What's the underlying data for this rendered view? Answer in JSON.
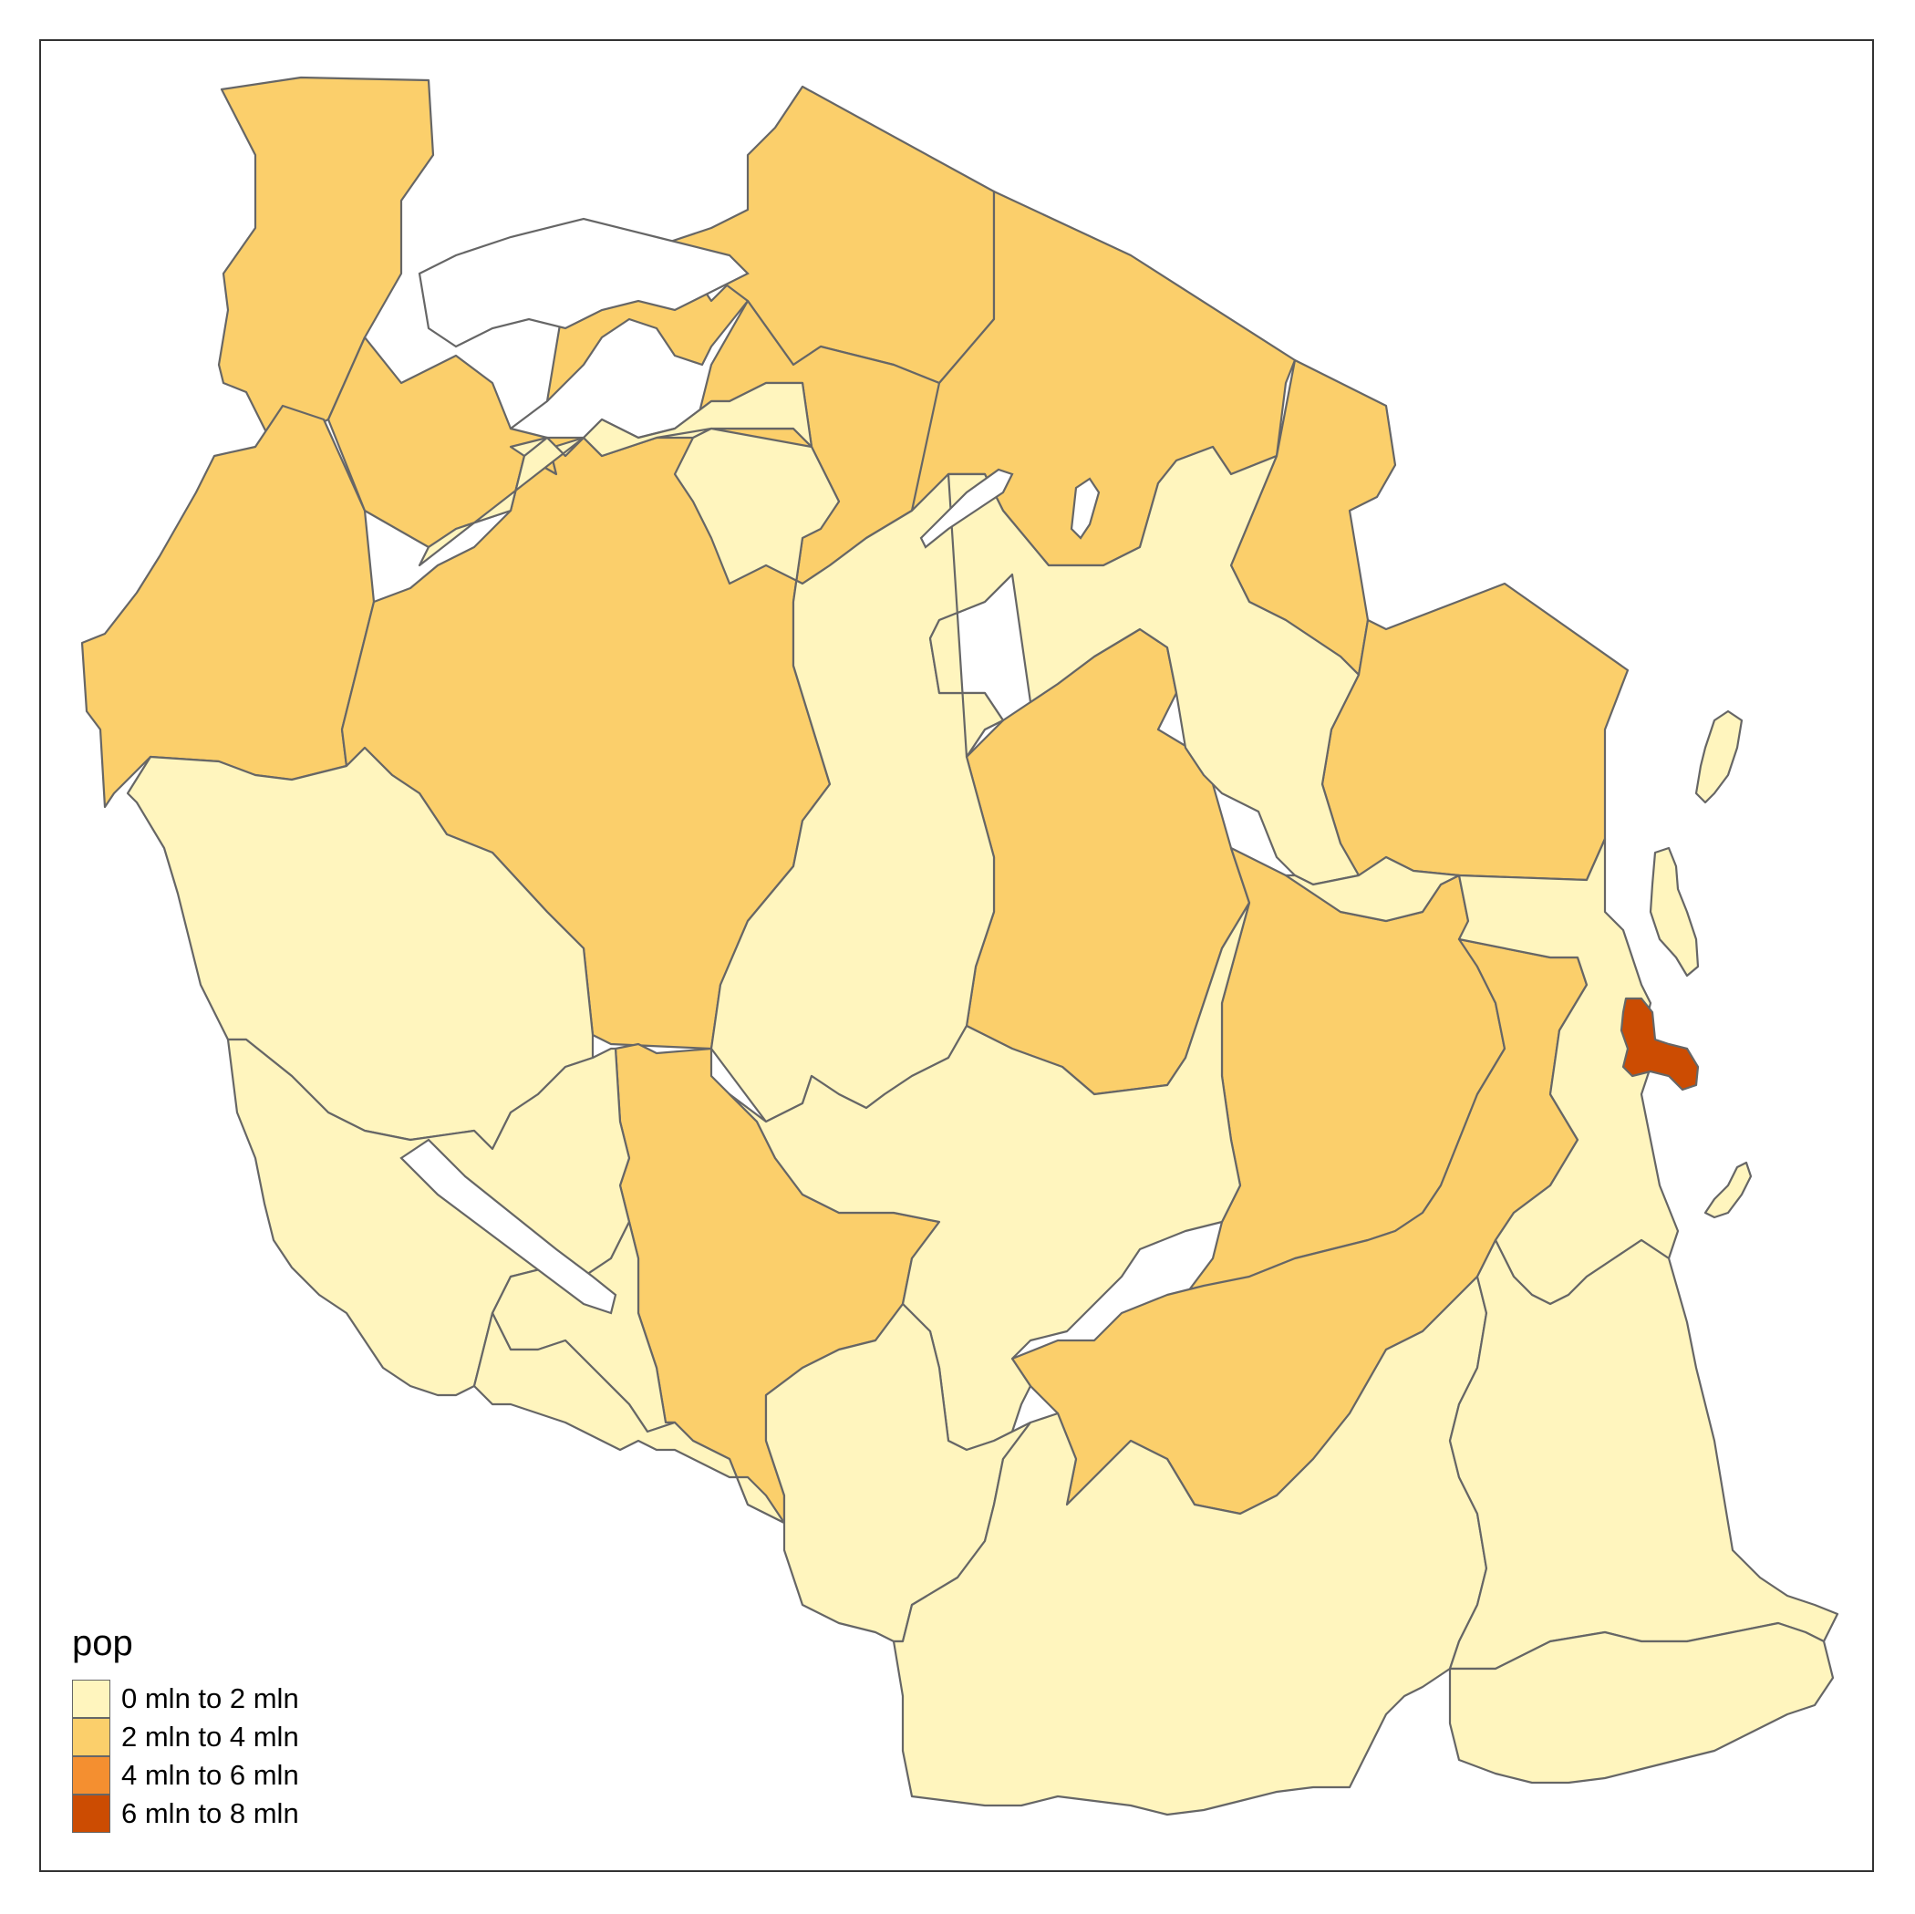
{
  "colors": {
    "class_0_2": "#fff5be",
    "class_2_4": "#fbcf6b",
    "class_4_6": "#f48f30",
    "class_6_8": "#cc4c02",
    "border": "#666666",
    "water": "#ffffff"
  },
  "legend": {
    "title": "pop",
    "items": [
      {
        "label": "0 mln to 2 mln",
        "color": "#fff5be"
      },
      {
        "label": "2 mln to 4 mln",
        "color": "#fbcf6b"
      },
      {
        "label": "4 mln to 6 mln",
        "color": "#f48f30"
      },
      {
        "label": "6 mln to 8 mln",
        "color": "#cc4c02"
      }
    ]
  }
}
